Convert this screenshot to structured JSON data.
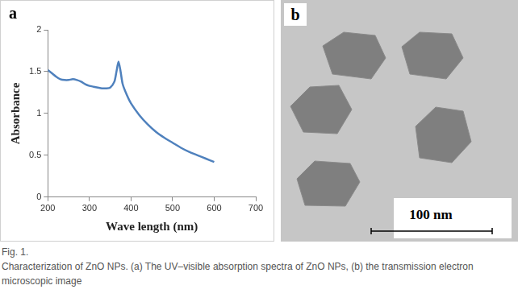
{
  "chart_data": {
    "type": "line",
    "title": "a",
    "x_label": "Wave length (nm)",
    "y_label": "Absorbance",
    "x": [
      200,
      210,
      220,
      230,
      240,
      250,
      260,
      270,
      280,
      290,
      300,
      310,
      320,
      330,
      340,
      350,
      360,
      365,
      370,
      375,
      380,
      390,
      400,
      420,
      440,
      460,
      480,
      500,
      520,
      540,
      560,
      580,
      600
    ],
    "values": [
      1.52,
      1.48,
      1.44,
      1.41,
      1.4,
      1.4,
      1.41,
      1.4,
      1.38,
      1.35,
      1.33,
      1.32,
      1.31,
      1.3,
      1.3,
      1.31,
      1.38,
      1.5,
      1.62,
      1.5,
      1.35,
      1.22,
      1.12,
      0.98,
      0.87,
      0.78,
      0.71,
      0.65,
      0.59,
      0.54,
      0.5,
      0.46,
      0.42
    ],
    "color": "#4f81bd",
    "xlim": [
      200,
      700
    ],
    "xticks": [
      200,
      300,
      400,
      500,
      600,
      700
    ],
    "ylim": [
      0,
      2
    ],
    "yticks": [
      0,
      0.5,
      1,
      1.5,
      2
    ],
    "grid": false
  },
  "image": {
    "panel_label": "b",
    "scale_bar": "100 nm"
  },
  "caption": {
    "label": "Fig. 1.",
    "text": "Characterization of ZnO NPs. (a) The UV–visible absorption spectra of ZnO NPs, (b) the transmission electron microscopic image"
  }
}
